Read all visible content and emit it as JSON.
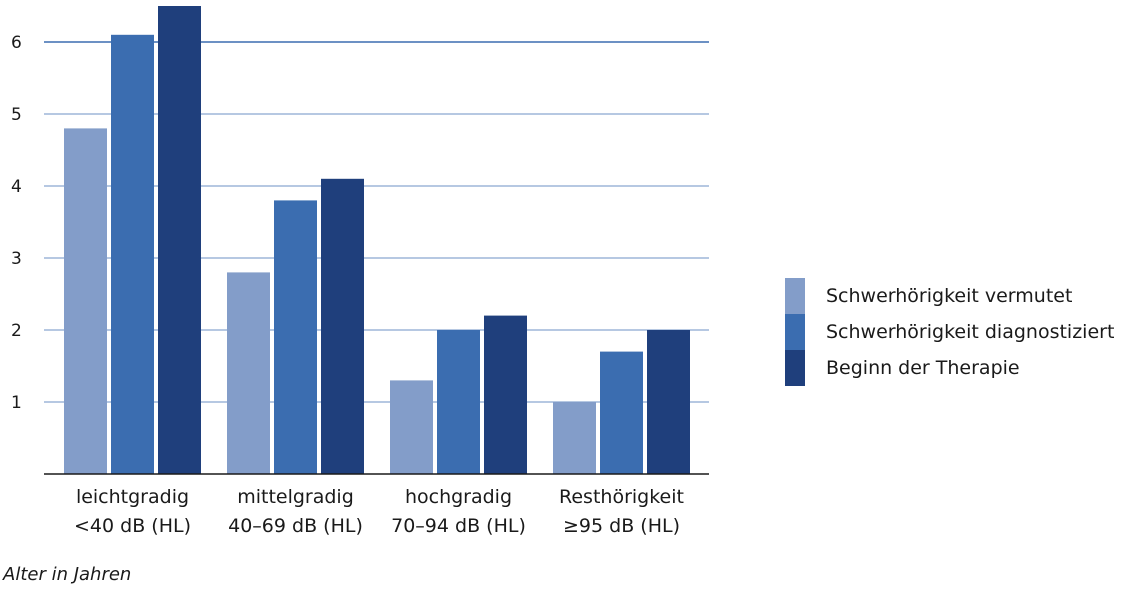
{
  "chart_data": {
    "type": "bar",
    "categories": [
      [
        "leichtgradig",
        "<40 dB (HL)"
      ],
      [
        "mittelgradig",
        "40–69 dB (HL)"
      ],
      [
        "hochgradig",
        "70–94 dB (HL)"
      ],
      [
        "Resthörigkeit",
        "≥95 dB (HL)"
      ]
    ],
    "series": [
      {
        "name": "Schwerhörigkeit vermutet",
        "color": "#839dc9",
        "values": [
          4.8,
          2.8,
          1.3,
          1.0
        ]
      },
      {
        "name": "Schwerhörigkeit diagnostiziert",
        "color": "#3b6db0",
        "values": [
          6.1,
          3.8,
          2.0,
          1.7
        ]
      },
      {
        "name": "Beginn der Therapie",
        "color": "#1f3f7c",
        "values": [
          6.5,
          4.1,
          2.2,
          2.0
        ]
      }
    ],
    "yticks": [
      1,
      2,
      3,
      4,
      5,
      6
    ],
    "ylim": [
      0,
      6.5
    ],
    "ylabel": "Alter in Jahren",
    "grid": true,
    "legend_position": "right"
  },
  "colors": {
    "grid": "#3b6db0",
    "axis": "#1a1a1a"
  }
}
